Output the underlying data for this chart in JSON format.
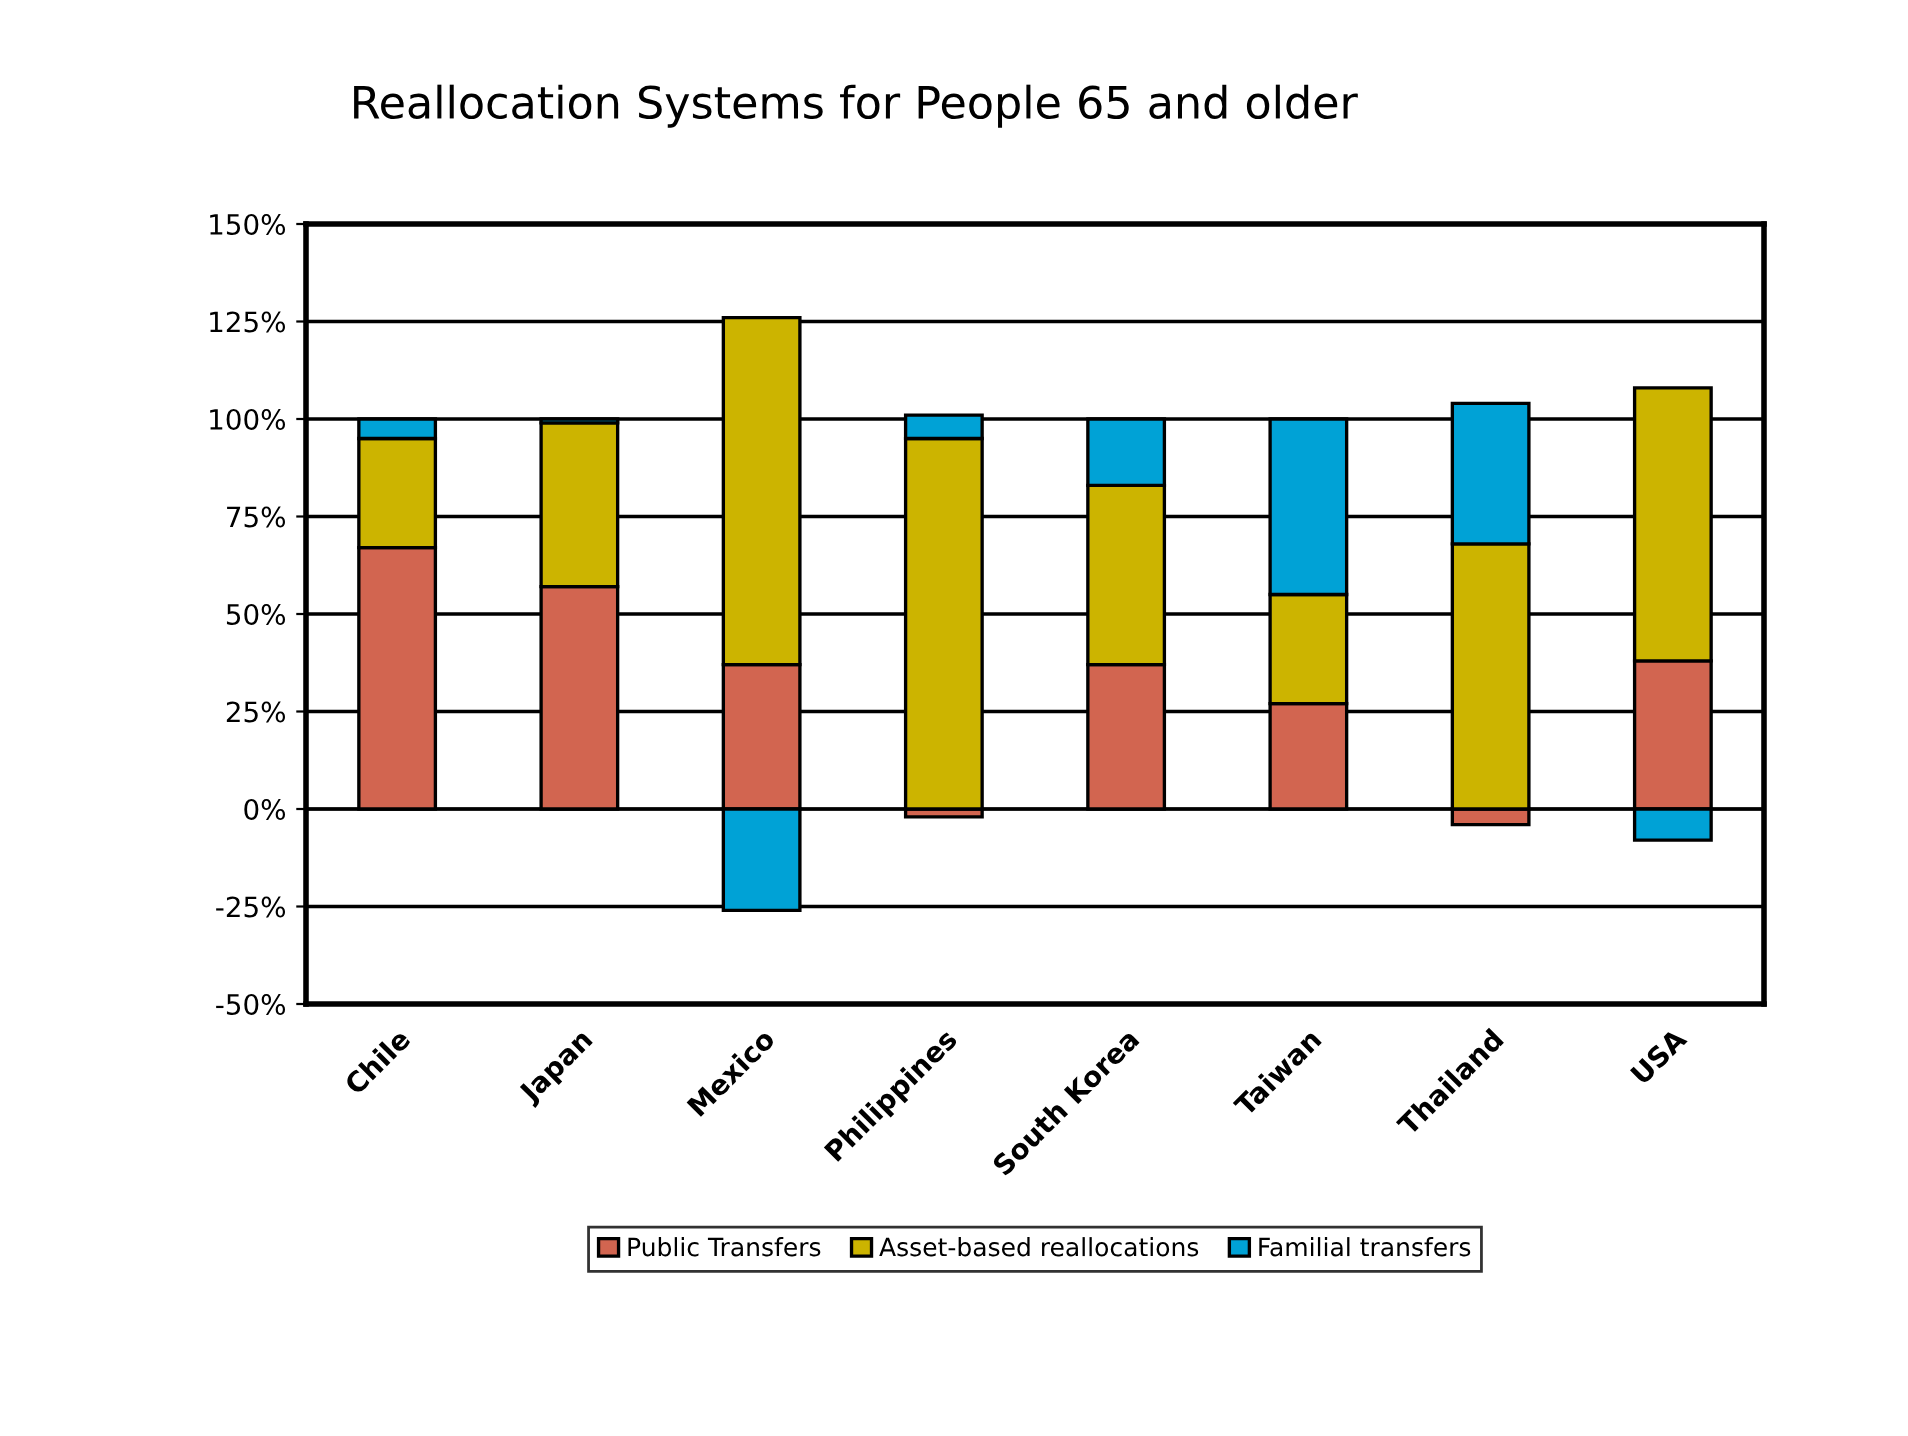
{
  "chart_data": {
    "type": "bar",
    "title": "Reallocation Systems for People 65 and older",
    "stacked": true,
    "categories": [
      "Chile",
      "Japan",
      "Mexico",
      "Philippines",
      "South Korea",
      "Taiwan",
      "Thailand",
      "USA"
    ],
    "series": [
      {
        "name": "Public Transfers",
        "color": "#d26550",
        "values": [
          67,
          57,
          37,
          -2,
          37,
          27,
          -4,
          38
        ]
      },
      {
        "name": "Asset-based reallocations",
        "color": "#ccb400",
        "values": [
          28,
          42,
          89,
          95,
          46,
          28,
          68,
          70
        ]
      },
      {
        "name": "Familial transfers",
        "color": "#00a2d6",
        "values": [
          5,
          1,
          -26,
          6,
          17,
          45,
          36,
          -8
        ]
      }
    ],
    "ylim": [
      -50,
      150
    ],
    "yticks": [
      {
        "value": -50,
        "label": "-50%"
      },
      {
        "value": -25,
        "label": "-25%"
      },
      {
        "value": 0,
        "label": "0%"
      },
      {
        "value": 25,
        "label": "25%"
      },
      {
        "value": 50,
        "label": "50%"
      },
      {
        "value": 75,
        "label": "75%"
      },
      {
        "value": 100,
        "label": "100%"
      },
      {
        "value": 125,
        "label": "125%"
      },
      {
        "value": 150,
        "label": "150%"
      }
    ],
    "grid": "y",
    "legend": "bottom"
  }
}
